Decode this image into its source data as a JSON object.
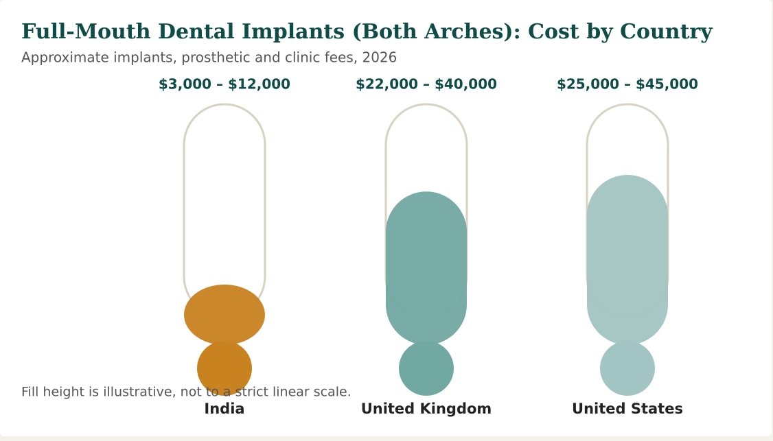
{
  "chart_data": {
    "type": "thermometer",
    "title": "Full-Mouth Dental Implants (Both Arches): Cost by Country",
    "subtitle": "Approximate implants, prosthetic and clinic fees, 2026",
    "categories": [
      "India",
      "United Kingdom",
      "United States"
    ],
    "low": [
      3000,
      22000,
      25000
    ],
    "high": [
      12000,
      40000,
      45000
    ],
    "value_labels": [
      "$3,000 – $12,000",
      "$22,000 – $40,000",
      "$25,000 – $45,000"
    ],
    "colors": [
      "#c88220",
      "#72a8a2",
      "#a2c4c2"
    ],
    "note": "Fill height is illustrative, not to a strict linear scale."
  }
}
